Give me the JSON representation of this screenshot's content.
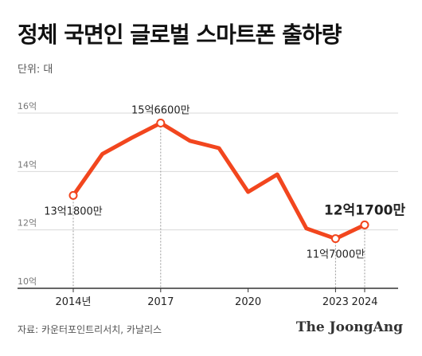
{
  "title": "정체 국면인 글로벌 스마트폰 출하량",
  "unit_label": "단위: 대",
  "source": "자료: 카운터포인트리서치, 카날리스",
  "logo_text": "The JoongAng",
  "colors": {
    "line": "#f2461e",
    "marker_fill": "#ffffff",
    "grid": "#d9d9d9",
    "axis": "#333333",
    "text": "#222222",
    "muted": "#777777"
  },
  "chart_data": {
    "type": "line",
    "x": [
      2014,
      2015,
      2016,
      2017,
      2018,
      2019,
      2020,
      2021,
      2022,
      2023,
      2024
    ],
    "x_ticks": [
      {
        "x": 2014,
        "label": "2014년"
      },
      {
        "x": 2017,
        "label": "2017"
      },
      {
        "x": 2020,
        "label": "2020"
      },
      {
        "x": 2023,
        "label": "2023"
      },
      {
        "x": 2024,
        "label": "2024"
      }
    ],
    "xlim": [
      2014,
      2024
    ],
    "y": [
      13.18,
      14.6,
      15.15,
      15.66,
      15.05,
      14.8,
      13.3,
      13.9,
      12.05,
      11.7,
      12.17
    ],
    "ylim": [
      10,
      16
    ],
    "y_ticks": [
      {
        "y": 10,
        "label": "10억"
      },
      {
        "y": 12,
        "label": "12억"
      },
      {
        "y": 14,
        "label": "14억"
      },
      {
        "y": 16,
        "label": "16억"
      }
    ],
    "annotations": [
      {
        "x": 2014,
        "y": 13.18,
        "label": "13억1800만",
        "position": "below",
        "marker": true,
        "bold": false
      },
      {
        "x": 2017,
        "y": 15.66,
        "label": "15억6600만",
        "position": "above",
        "marker": true,
        "bold": false
      },
      {
        "x": 2023,
        "y": 11.7,
        "label": "11억7000만",
        "position": "below",
        "marker": true,
        "bold": false
      },
      {
        "x": 2024,
        "y": 12.17,
        "label": "12억1700만",
        "position": "above",
        "marker": true,
        "bold": true
      }
    ],
    "grid": true
  }
}
